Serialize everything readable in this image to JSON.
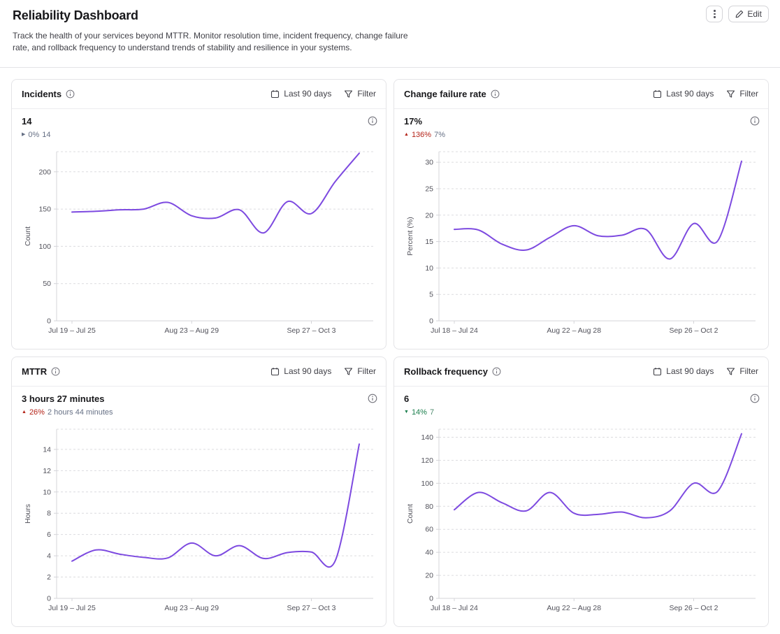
{
  "page": {
    "title": "Reliability Dashboard",
    "description": "Track the health of your services beyond MTTR. Monitor resolution time, incident frequency, change failure rate, and rollback frequency to understand trends of stability and resilience in your systems.",
    "edit_label": "Edit"
  },
  "colors": {
    "series_line": "#7d4ae0",
    "delta_up_red": "#b42318",
    "delta_down_green": "#1b7f4d",
    "rollback_prev_green": "#4d8a6d"
  },
  "panels": [
    {
      "title": "Incidents",
      "date_range_label": "Last 90 days",
      "filter_label": "Filter",
      "stat": {
        "value": "14",
        "delta": {
          "direction": "flat",
          "arrow_glyph": "▶",
          "pct": "0%",
          "previous": "14"
        }
      },
      "chart_data": {
        "type": "line",
        "title": "Incidents over last 90 days (weekly)",
        "ylabel": "Count",
        "ylim": [
          0,
          227
        ],
        "yticks": [
          0,
          50,
          100,
          150,
          200
        ],
        "values": [
          146,
          147,
          149,
          150,
          159,
          141,
          138,
          149,
          118,
          160,
          144,
          187,
          225
        ],
        "xticks": [
          {
            "index": 0,
            "label": "Jul 19 – Jul 25"
          },
          {
            "index": 5,
            "label": "Aug 23 – Aug 29"
          },
          {
            "index": 10,
            "label": "Sep 27 – Oct 3"
          }
        ],
        "legend": "none",
        "grid": "horizontal-dashed"
      }
    },
    {
      "title": "Change failure rate",
      "date_range_label": "Last 90 days",
      "filter_label": "Filter",
      "stat": {
        "value": "17%",
        "delta": {
          "direction": "up",
          "arrow_glyph": "▲",
          "pct": "136%",
          "previous": "7%"
        }
      },
      "chart_data": {
        "type": "line",
        "title": "Change failure rate over last 90 days (weekly)",
        "ylabel": "Percent (%)",
        "ylim": [
          0,
          32
        ],
        "yticks": [
          0,
          5,
          10,
          15,
          20,
          25,
          30
        ],
        "values": [
          17.3,
          17.2,
          14.5,
          13.4,
          15.8,
          18,
          16.1,
          16.2,
          17.3,
          11.7,
          18.4,
          15.1,
          30.2
        ],
        "xticks": [
          {
            "index": 0,
            "label": "Jul 18 – Jul 24"
          },
          {
            "index": 5,
            "label": "Aug 22 – Aug 28"
          },
          {
            "index": 10,
            "label": "Sep 26 – Oct 2"
          }
        ],
        "legend": "none",
        "grid": "horizontal-dashed"
      }
    },
    {
      "title": "MTTR",
      "date_range_label": "Last 90 days",
      "filter_label": "Filter",
      "stat": {
        "value": "3 hours 27 minutes",
        "delta": {
          "direction": "up",
          "arrow_glyph": "▲",
          "pct": "26%",
          "previous": "2 hours 44 minutes"
        }
      },
      "chart_data": {
        "type": "line",
        "title": "MTTR over last 90 days (weekly)",
        "ylabel": "Hours",
        "ylim": [
          0,
          15.9
        ],
        "yticks": [
          0,
          2,
          4,
          6,
          8,
          10,
          12,
          14
        ],
        "values": [
          3.5,
          4.55,
          4.15,
          3.85,
          3.8,
          5.2,
          4.0,
          4.95,
          3.75,
          4.3,
          4.35,
          3.55,
          14.5
        ],
        "xticks": [
          {
            "index": 0,
            "label": "Jul 19 – Jul 25"
          },
          {
            "index": 5,
            "label": "Aug 23 – Aug 29"
          },
          {
            "index": 10,
            "label": "Sep 27 – Oct 3"
          }
        ],
        "legend": "none",
        "grid": "horizontal-dashed"
      }
    },
    {
      "title": "Rollback frequency",
      "date_range_label": "Last 90 days",
      "filter_label": "Filter",
      "stat": {
        "value": "6",
        "delta": {
          "direction": "down",
          "arrow_glyph": "▼",
          "pct": "14%",
          "previous": "7"
        }
      },
      "chart_data": {
        "type": "line",
        "title": "Rollback frequency over last 90 days (weekly)",
        "ylabel": "Count",
        "ylim": [
          0,
          147
        ],
        "yticks": [
          0,
          20,
          40,
          60,
          80,
          100,
          120,
          140
        ],
        "values": [
          77,
          92,
          83,
          76,
          92,
          74,
          73,
          75,
          70,
          76,
          100,
          93,
          143
        ],
        "xticks": [
          {
            "index": 0,
            "label": "Jul 18 – Jul 24"
          },
          {
            "index": 5,
            "label": "Aug 22 – Aug 28"
          },
          {
            "index": 10,
            "label": "Sep 26 – Oct 2"
          }
        ],
        "legend": "none",
        "grid": "horizontal-dashed"
      }
    }
  ]
}
